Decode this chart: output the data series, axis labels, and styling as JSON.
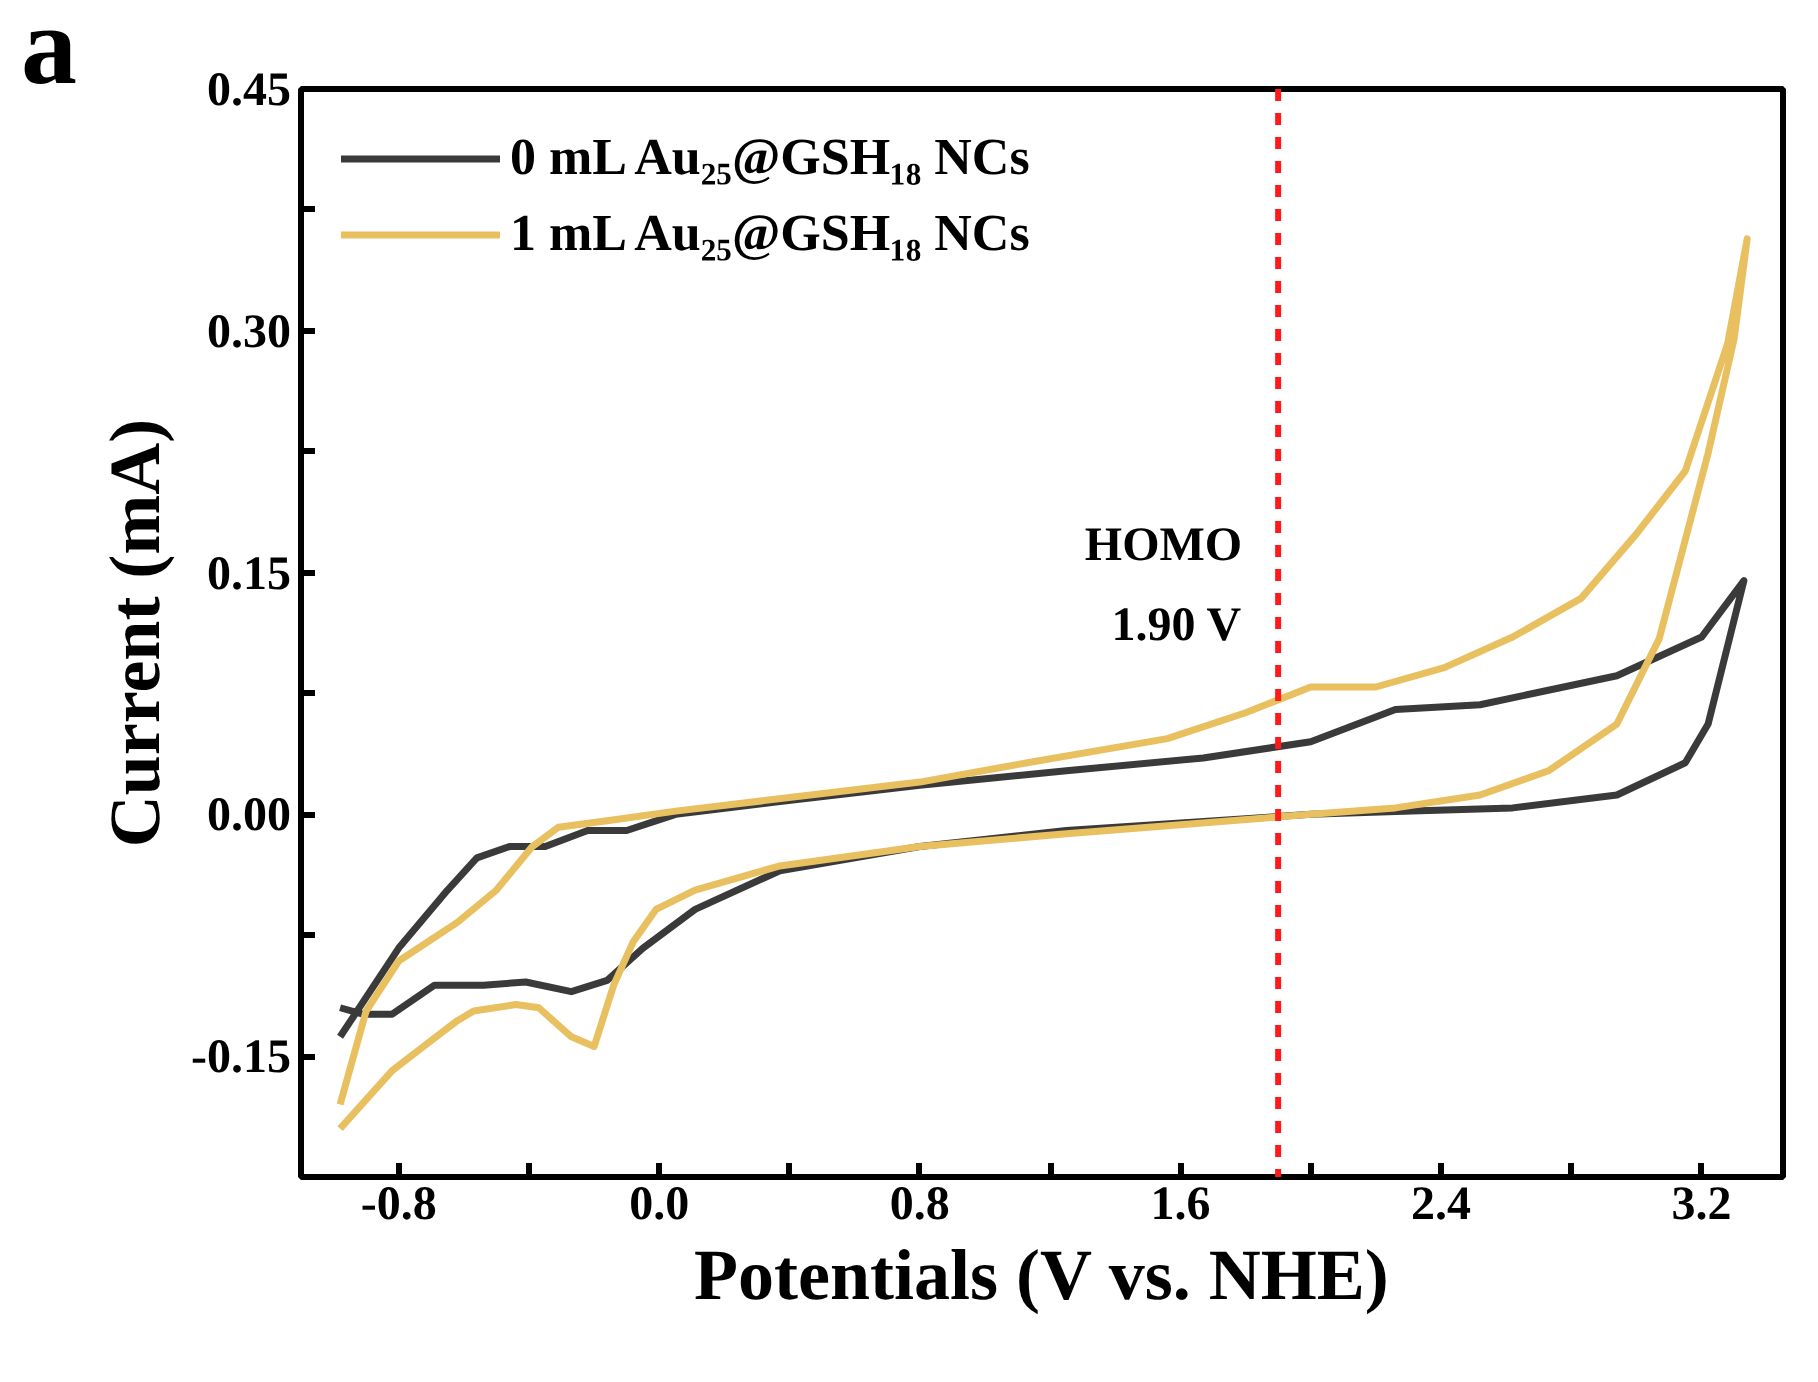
{
  "chart_data": {
    "type": "line",
    "xlabel": "Potentials (V vs. NHE)",
    "ylabel": "Current (mA)",
    "annotations": [
      "a"
    ],
    "xlim": [
      -1.1,
      3.45
    ],
    "ylim": [
      -0.225,
      0.45
    ],
    "xticks": [
      {
        "value": -0.8,
        "label": "-0.8"
      },
      {
        "value": -0.4,
        "label": null
      },
      {
        "value": 0.0,
        "label": "0.0"
      },
      {
        "value": 0.4,
        "label": null
      },
      {
        "value": 0.8,
        "label": "0.8"
      },
      {
        "value": 1.2,
        "label": null
      },
      {
        "value": 1.6,
        "label": "1.6"
      },
      {
        "value": 2.0,
        "label": null
      },
      {
        "value": 2.4,
        "label": "2.4"
      },
      {
        "value": 2.8,
        "label": null
      },
      {
        "value": 3.2,
        "label": "3.2"
      }
    ],
    "yticks": [
      {
        "value": -0.15,
        "label": "-0.15"
      },
      {
        "value": -0.075,
        "label": null
      },
      {
        "value": 0.0,
        "label": "0.00"
      },
      {
        "value": 0.075,
        "label": null
      },
      {
        "value": 0.15,
        "label": "0.15"
      },
      {
        "value": 0.225,
        "label": null
      },
      {
        "value": 0.3,
        "label": "0.30"
      },
      {
        "value": 0.375,
        "label": null
      },
      {
        "value": 0.45,
        "label": "0.45"
      }
    ],
    "grid": false,
    "legend": "top left",
    "line_style": "solid",
    "marker": "none",
    "ref_lines": [
      {
        "axis": "x",
        "value": 1.9,
        "label": "HOMO\n1.90 V",
        "color": "#ff1a1a",
        "line_style": "dashed"
      }
    ],
    "series": [
      {
        "name": "0 mL Au₂₅@GSH₁₈ NCs",
        "color": "#3a3a3a",
        "x": [
          -0.98,
          -0.8,
          -0.65,
          -0.56,
          -0.46,
          -0.35,
          -0.22,
          -0.1,
          0.05,
          0.37,
          0.8,
          1.25,
          1.67,
          2.0,
          2.26,
          2.52,
          2.94,
          3.2,
          3.33,
          3.22,
          3.15,
          2.94,
          2.62,
          2.31,
          2.0,
          1.25,
          0.8,
          0.37,
          0.11,
          -0.05,
          -0.16,
          -0.27,
          -0.41,
          -0.54,
          -0.69,
          -0.82,
          -0.91,
          -0.98
        ],
        "values": [
          -0.138,
          -0.083,
          -0.047,
          -0.027,
          -0.02,
          -0.02,
          -0.01,
          -0.01,
          0.0,
          0.008,
          0.018,
          0.027,
          0.035,
          0.045,
          0.065,
          0.068,
          0.086,
          0.11,
          0.145,
          0.056,
          0.032,
          0.012,
          0.004,
          0.002,
          0.0,
          -0.01,
          -0.02,
          -0.035,
          -0.059,
          -0.083,
          -0.103,
          -0.11,
          -0.104,
          -0.106,
          -0.106,
          -0.124,
          -0.124,
          -0.12
        ]
      },
      {
        "name": "1 mL Au₂₅@GSH₁₈ NCs",
        "color": "#e8c060",
        "x": [
          -0.98,
          -0.9,
          -0.8,
          -0.62,
          -0.5,
          -0.39,
          -0.31,
          -0.16,
          0.05,
          0.8,
          1.13,
          1.56,
          1.8,
          2.0,
          2.2,
          2.41,
          2.62,
          2.83,
          3.0,
          3.15,
          3.28,
          3.34,
          3.3,
          3.22,
          3.07,
          2.94,
          2.73,
          2.52,
          2.26,
          2.0,
          1.25,
          0.8,
          0.37,
          0.11,
          -0.01,
          -0.08,
          -0.14,
          -0.2,
          -0.27,
          -0.37,
          -0.44,
          -0.57,
          -0.62,
          -0.73,
          -0.82,
          -0.98
        ],
        "values": [
          -0.18,
          -0.122,
          -0.091,
          -0.067,
          -0.047,
          -0.02,
          -0.008,
          -0.004,
          0.002,
          0.02,
          0.032,
          0.047,
          0.063,
          0.079,
          0.079,
          0.091,
          0.11,
          0.134,
          0.174,
          0.213,
          0.292,
          0.357,
          0.295,
          0.224,
          0.109,
          0.056,
          0.027,
          0.012,
          0.004,
          0.0,
          -0.012,
          -0.02,
          -0.032,
          -0.047,
          -0.059,
          -0.079,
          -0.106,
          -0.144,
          -0.138,
          -0.12,
          -0.118,
          -0.122,
          -0.128,
          -0.145,
          -0.159,
          -0.195
        ]
      }
    ]
  }
}
